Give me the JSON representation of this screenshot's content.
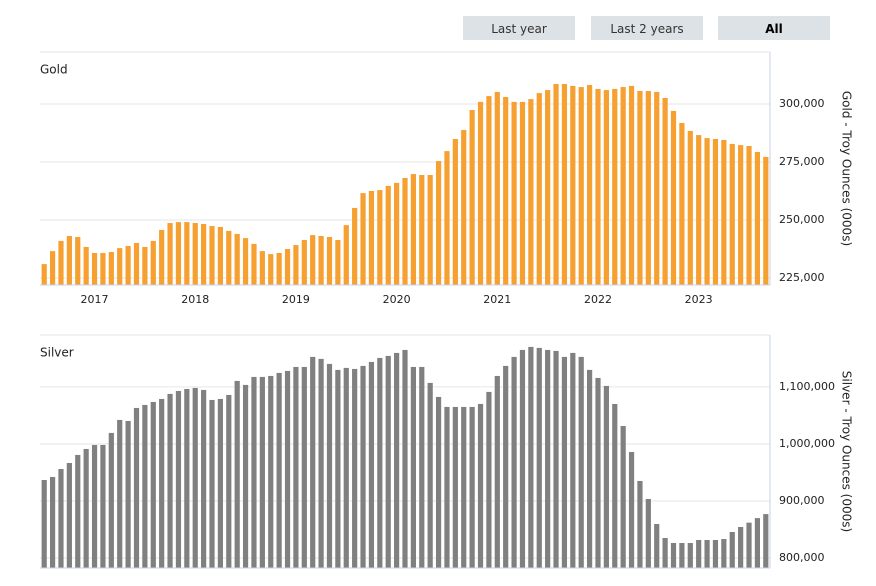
{
  "buttons": [
    "Last year",
    "Last 2 years",
    "All"
  ],
  "chart_data": [
    {
      "type": "bar",
      "title": "Gold",
      "y_label": "Gold - Troy Ounces (000s)",
      "color": "#f5a030",
      "grid": true,
      "categories": [
        null,
        null,
        null,
        null,
        null,
        null,
        "2017",
        null,
        null,
        null,
        null,
        null,
        null,
        null,
        null,
        null,
        null,
        null,
        "2018",
        null,
        null,
        null,
        null,
        null,
        null,
        null,
        null,
        null,
        null,
        null,
        "2019",
        null,
        null,
        null,
        null,
        null,
        null,
        null,
        null,
        null,
        null,
        null,
        "2020",
        null,
        null,
        null,
        null,
        null,
        null,
        null,
        null,
        null,
        null,
        null,
        "2021",
        null,
        null,
        null,
        null,
        null,
        null,
        null,
        null,
        null,
        null,
        null,
        "2022",
        null,
        null,
        null,
        null,
        null,
        null,
        null,
        null,
        null,
        null,
        null,
        "2023",
        null,
        null,
        null,
        null,
        null,
        null,
        null,
        null
      ],
      "values": [
        231000,
        236600,
        241000,
        243100,
        242700,
        238400,
        235800,
        235800,
        236200,
        237900,
        238800,
        240100,
        238400,
        241000,
        245700,
        248700,
        249100,
        249100,
        248700,
        248300,
        247400,
        247000,
        245300,
        244000,
        242200,
        239700,
        236600,
        235300,
        235800,
        237500,
        239200,
        241400,
        243500,
        243100,
        242700,
        241400,
        247800,
        255200,
        261600,
        262500,
        262900,
        264700,
        266000,
        268100,
        269800,
        269400,
        269400,
        275400,
        279700,
        284900,
        288800,
        297400,
        300900,
        303400,
        305200,
        303000,
        300900,
        300900,
        302100,
        304700,
        306000,
        308600,
        308600,
        307800,
        307300,
        308200,
        306500,
        306000,
        306500,
        307300,
        307800,
        305600,
        305600,
        305200,
        302600,
        297000,
        291800,
        288400,
        286600,
        285300,
        284900,
        284500,
        282800,
        282300,
        281900,
        279300,
        277200
      ],
      "ylim": [
        222000,
        322400
      ],
      "yticks": [
        {
          "value": 225000,
          "label": "225,000"
        },
        {
          "value": 250000,
          "label": "250,000"
        },
        {
          "value": 275000,
          "label": "275,000"
        },
        {
          "value": 300000,
          "label": "300,000"
        }
      ]
    },
    {
      "type": "bar",
      "title": "Silver",
      "y_label": "Silver - Troy Ounces (000s)",
      "color": "#808080",
      "grid": true,
      "values": [
        936800,
        942100,
        956100,
        966600,
        980700,
        991200,
        998200,
        998200,
        1019300,
        1042100,
        1040300,
        1063100,
        1068400,
        1073600,
        1078900,
        1087700,
        1092900,
        1096400,
        1098200,
        1094700,
        1077100,
        1078900,
        1085900,
        1110500,
        1103500,
        1117500,
        1117500,
        1119200,
        1124500,
        1128000,
        1135000,
        1135000,
        1152600,
        1149100,
        1140300,
        1129800,
        1133300,
        1131500,
        1136800,
        1143800,
        1150800,
        1154300,
        1159600,
        1164800,
        1135000,
        1135000,
        1107000,
        1082400,
        1064900,
        1064900,
        1064900,
        1064900,
        1070100,
        1091200,
        1119200,
        1136800,
        1152600,
        1164800,
        1170100,
        1168400,
        1164800,
        1163100,
        1152600,
        1159600,
        1152600,
        1129800,
        1115700,
        1101700,
        1070100,
        1031500,
        985900,
        935100,
        903500,
        859600,
        835100,
        826300,
        826300,
        826300,
        831600,
        831600,
        831600,
        833300,
        845600,
        854400,
        862000,
        870000,
        877000
      ],
      "ylim": [
        782500,
        1191000
      ],
      "yticks": [
        {
          "value": 800000,
          "label": "800,000"
        },
        {
          "value": 900000,
          "label": "900,000"
        },
        {
          "value": 1000000,
          "label": "1,000,000"
        },
        {
          "value": 1100000,
          "label": "1,100,000"
        }
      ]
    }
  ]
}
